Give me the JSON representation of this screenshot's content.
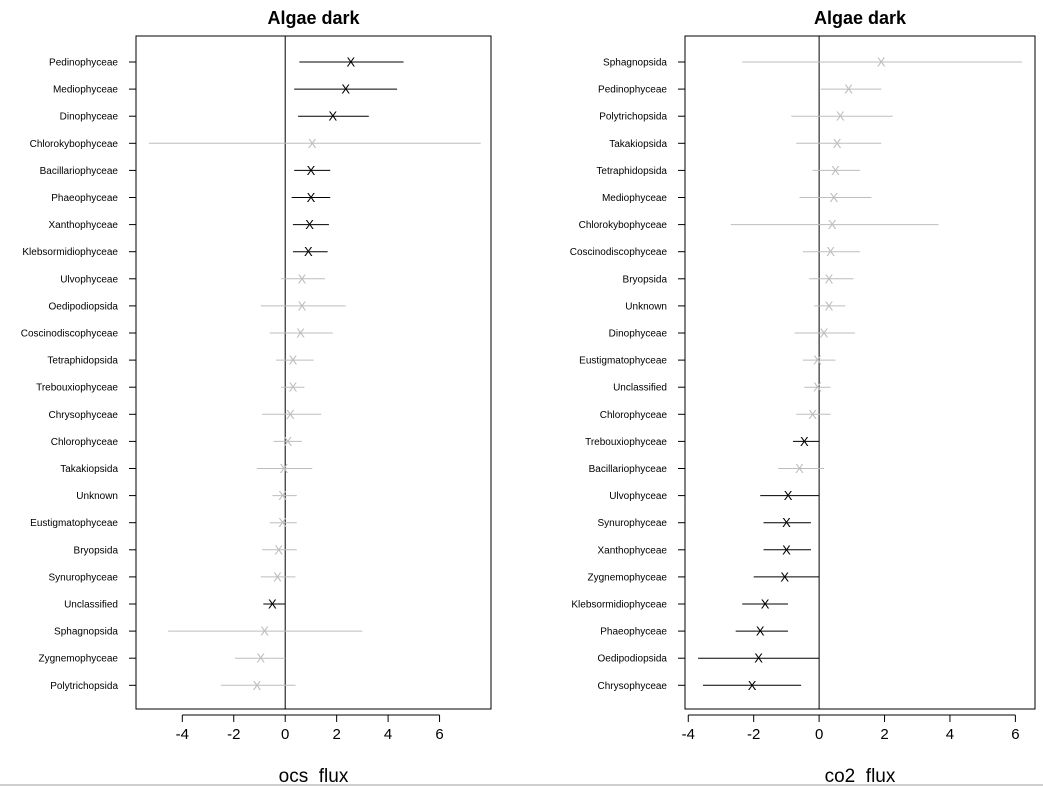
{
  "colors": {
    "significant": "#000000",
    "nonsignificant": "#bdbdbd",
    "frame": "#000000"
  },
  "chart_data": [
    {
      "type": "forest",
      "title": "Algae dark",
      "xlabel": "ocs_flux",
      "ylabel": "",
      "xlim": [
        -5.8,
        8.0
      ],
      "xticks": [
        -4,
        -2,
        0,
        2,
        4,
        6
      ],
      "xtick_labels": [
        "-4",
        "-2",
        "0",
        "2",
        "4",
        "6"
      ],
      "zero_line": 0,
      "grid": false,
      "marker": "X",
      "items": [
        {
          "label": "Pedinophyceae",
          "estimate": 2.55,
          "low": 0.55,
          "high": 4.6,
          "significant": true
        },
        {
          "label": "Mediophyceae",
          "estimate": 2.35,
          "low": 0.35,
          "high": 4.35,
          "significant": true
        },
        {
          "label": "Dinophyceae",
          "estimate": 1.85,
          "low": 0.5,
          "high": 3.25,
          "significant": true
        },
        {
          "label": "Chlorokybophyceae",
          "estimate": 1.05,
          "low": -5.3,
          "high": 7.6,
          "significant": false
        },
        {
          "label": "Bacillariophyceae",
          "estimate": 1.0,
          "low": 0.35,
          "high": 1.75,
          "significant": true
        },
        {
          "label": "Phaeophyceae",
          "estimate": 1.0,
          "low": 0.25,
          "high": 1.75,
          "significant": true
        },
        {
          "label": "Xanthophyceae",
          "estimate": 0.95,
          "low": 0.3,
          "high": 1.7,
          "significant": true
        },
        {
          "label": "Klebsormidiophyceae",
          "estimate": 0.9,
          "low": 0.3,
          "high": 1.65,
          "significant": true
        },
        {
          "label": "Ulvophyceae",
          "estimate": 0.65,
          "low": -0.15,
          "high": 1.55,
          "significant": false
        },
        {
          "label": "Oedipodiopsida",
          "estimate": 0.65,
          "low": -0.95,
          "high": 2.35,
          "significant": false
        },
        {
          "label": "Coscinodiscophyceae",
          "estimate": 0.6,
          "low": -0.6,
          "high": 1.85,
          "significant": false
        },
        {
          "label": "Tetraphidopsida",
          "estimate": 0.3,
          "low": -0.35,
          "high": 1.1,
          "significant": false
        },
        {
          "label": "Trebouxiophyceae",
          "estimate": 0.3,
          "low": -0.15,
          "high": 0.75,
          "significant": false
        },
        {
          "label": "Chrysophyceae",
          "estimate": 0.2,
          "low": -0.9,
          "high": 1.4,
          "significant": false
        },
        {
          "label": "Chlorophyceae",
          "estimate": 0.1,
          "low": -0.45,
          "high": 0.65,
          "significant": false
        },
        {
          "label": "Takakiopsida",
          "estimate": -0.05,
          "low": -1.1,
          "high": 1.05,
          "significant": false
        },
        {
          "label": "Unknown",
          "estimate": -0.1,
          "low": -0.5,
          "high": 0.45,
          "significant": false
        },
        {
          "label": "Eustigmatophyceae",
          "estimate": -0.1,
          "low": -0.6,
          "high": 0.45,
          "significant": false
        },
        {
          "label": "Bryopsida",
          "estimate": -0.25,
          "low": -0.9,
          "high": 0.45,
          "significant": false
        },
        {
          "label": "Synurophyceae",
          "estimate": -0.3,
          "low": -0.95,
          "high": 0.4,
          "significant": false
        },
        {
          "label": "Unclassified",
          "estimate": -0.5,
          "low": -0.85,
          "high": 0.0,
          "significant": true
        },
        {
          "label": "Sphagnopsida",
          "estimate": -0.8,
          "low": -4.55,
          "high": 3.0,
          "significant": false
        },
        {
          "label": "Zygnemophyceae",
          "estimate": -0.95,
          "low": -1.95,
          "high": 0.0,
          "significant": false
        },
        {
          "label": "Polytrichopsida",
          "estimate": -1.1,
          "low": -2.5,
          "high": 0.4,
          "significant": false
        }
      ]
    },
    {
      "type": "forest",
      "title": "Algae dark",
      "xlabel": "co2_flux",
      "ylabel": "",
      "xlim": [
        -4.1,
        6.6
      ],
      "xticks": [
        -4,
        -2,
        0,
        2,
        4,
        6
      ],
      "xtick_labels": [
        "-4",
        "-2",
        "0",
        "2",
        "4",
        "6"
      ],
      "zero_line": 0,
      "grid": false,
      "marker": "X",
      "items": [
        {
          "label": "Sphagnopsida",
          "estimate": 1.9,
          "low": -2.35,
          "high": 6.2,
          "significant": false
        },
        {
          "label": "Pedinophyceae",
          "estimate": 0.9,
          "low": 0.05,
          "high": 1.9,
          "significant": false
        },
        {
          "label": "Polytrichopsida",
          "estimate": 0.65,
          "low": -0.85,
          "high": 2.25,
          "significant": false
        },
        {
          "label": "Takakiopsida",
          "estimate": 0.55,
          "low": -0.7,
          "high": 1.9,
          "significant": false
        },
        {
          "label": "Tetraphidopsida",
          "estimate": 0.5,
          "low": -0.2,
          "high": 1.25,
          "significant": false
        },
        {
          "label": "Mediophyceae",
          "estimate": 0.45,
          "low": -0.6,
          "high": 1.6,
          "significant": false
        },
        {
          "label": "Chlorokybophyceae",
          "estimate": 0.4,
          "low": -2.7,
          "high": 3.65,
          "significant": false
        },
        {
          "label": "Coscinodiscophyceae",
          "estimate": 0.35,
          "low": -0.5,
          "high": 1.25,
          "significant": false
        },
        {
          "label": "Bryopsida",
          "estimate": 0.3,
          "low": -0.3,
          "high": 1.05,
          "significant": false
        },
        {
          "label": "Unknown",
          "estimate": 0.3,
          "low": -0.15,
          "high": 0.8,
          "significant": false
        },
        {
          "label": "Dinophyceae",
          "estimate": 0.15,
          "low": -0.75,
          "high": 1.1,
          "significant": false
        },
        {
          "label": "Eustigmatophyceae",
          "estimate": -0.05,
          "low": -0.5,
          "high": 0.5,
          "significant": false
        },
        {
          "label": "Unclassified",
          "estimate": -0.05,
          "low": -0.45,
          "high": 0.35,
          "significant": false
        },
        {
          "label": "Chlorophyceae",
          "estimate": -0.2,
          "low": -0.7,
          "high": 0.35,
          "significant": false
        },
        {
          "label": "Trebouxiophyceae",
          "estimate": -0.45,
          "low": -0.8,
          "high": 0.0,
          "significant": true
        },
        {
          "label": "Bacillariophyceae",
          "estimate": -0.6,
          "low": -1.25,
          "high": 0.15,
          "significant": false
        },
        {
          "label": "Ulvophyceae",
          "estimate": -0.95,
          "low": -1.8,
          "high": 0.0,
          "significant": true
        },
        {
          "label": "Synurophyceae",
          "estimate": -1.0,
          "low": -1.7,
          "high": -0.25,
          "significant": true
        },
        {
          "label": "Xanthophyceae",
          "estimate": -1.0,
          "low": -1.7,
          "high": -0.25,
          "significant": true
        },
        {
          "label": "Zygnemophyceae",
          "estimate": -1.05,
          "low": -2.0,
          "high": 0.0,
          "significant": true
        },
        {
          "label": "Klebsormidiophyceae",
          "estimate": -1.65,
          "low": -2.35,
          "high": -0.95,
          "significant": true
        },
        {
          "label": "Phaeophyceae",
          "estimate": -1.8,
          "low": -2.55,
          "high": -0.95,
          "significant": true
        },
        {
          "label": "Oedipodiopsida",
          "estimate": -1.85,
          "low": -3.7,
          "high": 0.0,
          "significant": true
        },
        {
          "label": "Chrysophyceae",
          "estimate": -2.05,
          "low": -3.55,
          "high": -0.55,
          "significant": true
        }
      ]
    }
  ]
}
